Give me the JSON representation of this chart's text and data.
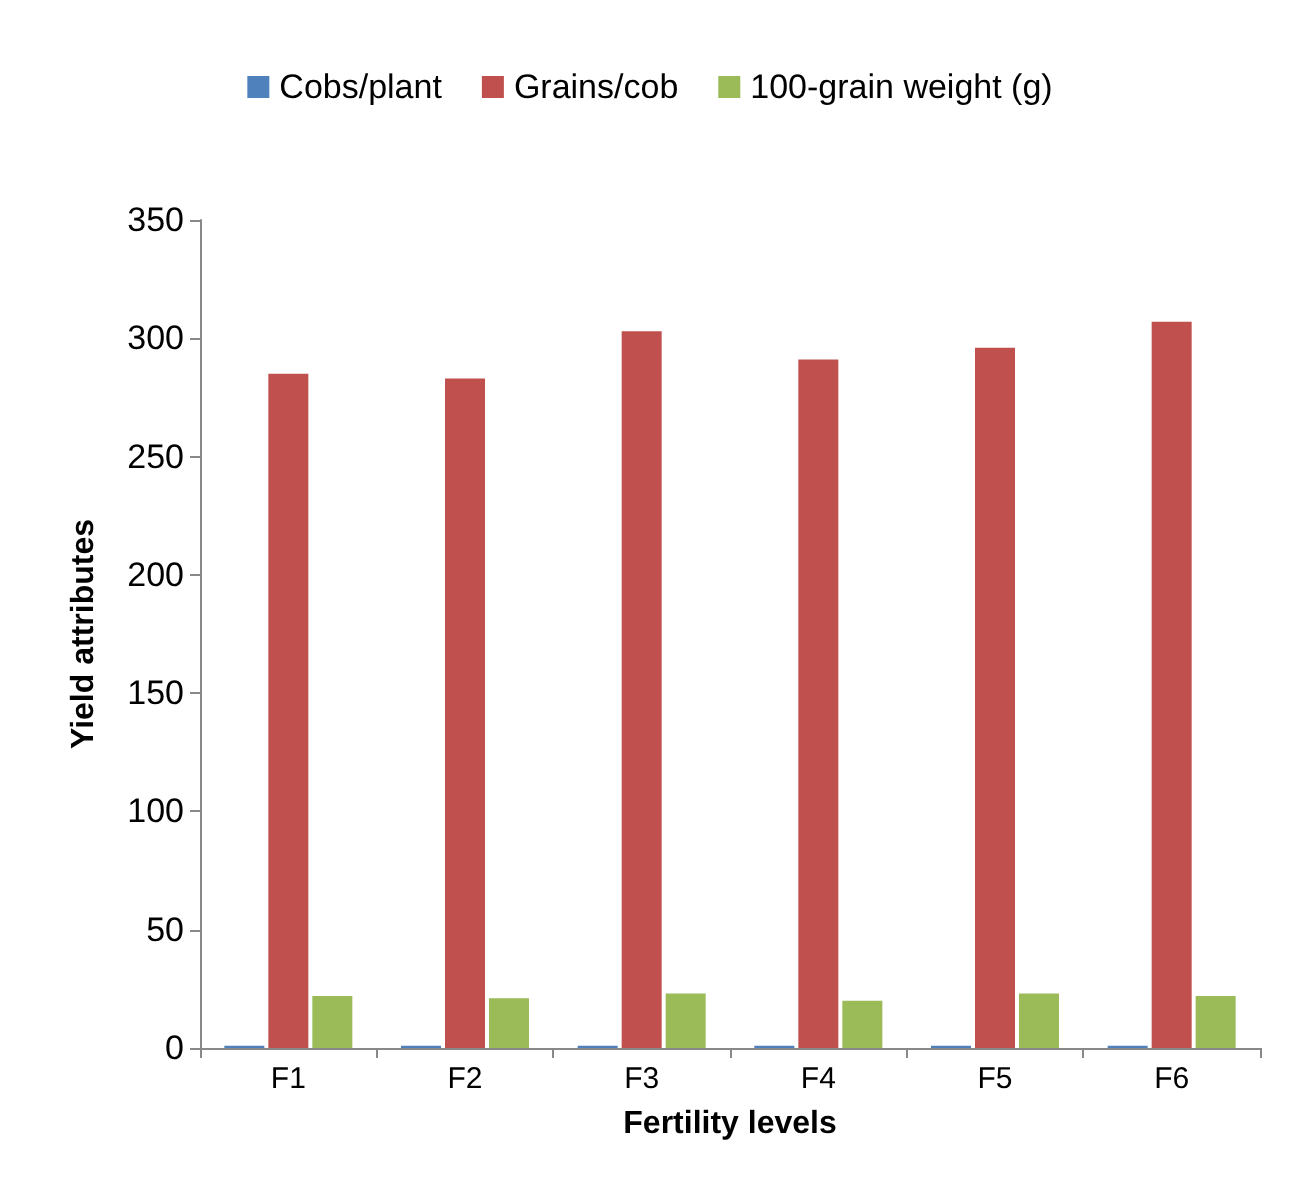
{
  "chart_data": {
    "type": "bar",
    "xlabel": "Fertility levels",
    "ylabel": "Yield attributes",
    "categories": [
      "F1",
      "F2",
      "F3",
      "F4",
      "F5",
      "F6"
    ],
    "series": [
      {
        "name": "Cobs/plant",
        "color": "#4f81bd",
        "values": [
          1,
          1,
          1,
          1,
          1,
          1
        ]
      },
      {
        "name": "Grains/cob",
        "color": "#c0504d",
        "values": [
          285,
          283,
          303,
          291,
          296,
          307
        ]
      },
      {
        "name": "100-grain weight (g)",
        "color": "#9bbb59",
        "values": [
          22,
          21,
          23,
          20,
          23,
          22
        ]
      }
    ],
    "ylim": [
      0,
      350
    ],
    "yticks": [
      0,
      50,
      100,
      150,
      200,
      250,
      300,
      350
    ],
    "grid": false,
    "legend": "top"
  }
}
